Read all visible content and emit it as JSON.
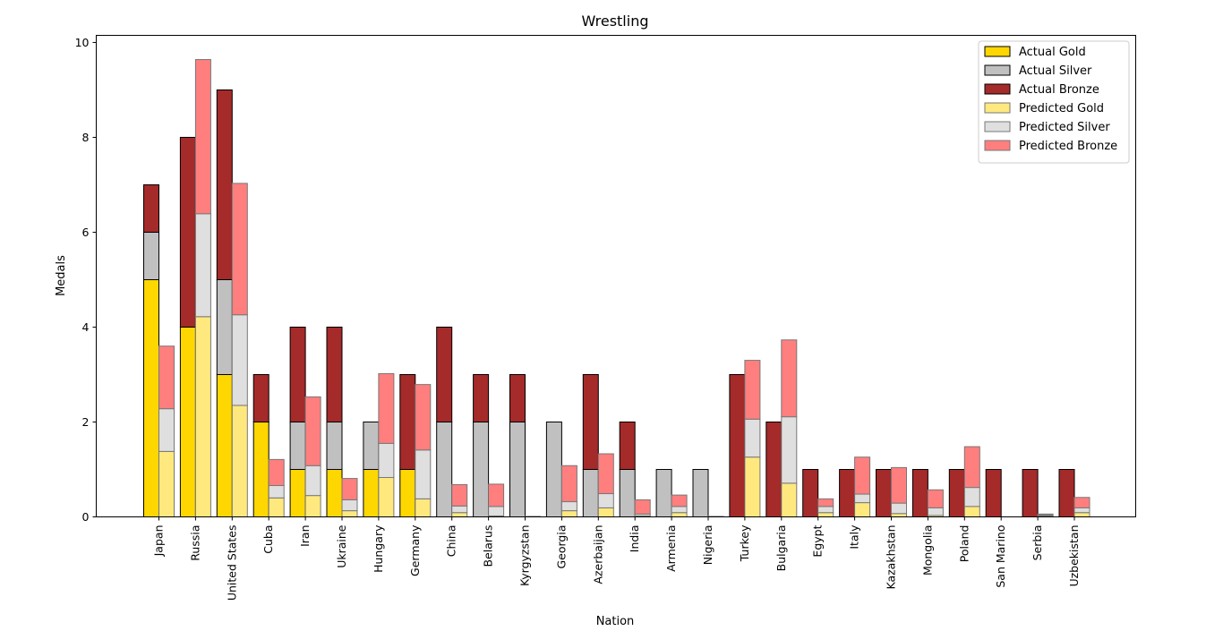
{
  "chart_data": {
    "type": "bar",
    "title": "Wrestling",
    "xlabel": "Nation",
    "ylabel": "Medals",
    "ylim": [
      0,
      10.15
    ],
    "yticks": [
      0,
      2,
      4,
      6,
      8,
      10
    ],
    "legend_position": "top-right",
    "categories": [
      "Japan",
      "Russia",
      "United States",
      "Cuba",
      "Iran",
      "Ukraine",
      "Hungary",
      "Germany",
      "China",
      "Belarus",
      "Kyrgyzstan",
      "Georgia",
      "Azerbaijan",
      "India",
      "Armenia",
      "Nigeria",
      "Turkey",
      "Bulgaria",
      "Egypt",
      "Italy",
      "Kazakhstan",
      "Mongolia",
      "Poland",
      "San Marino",
      "Serbia",
      "Uzbekistan"
    ],
    "series": [
      {
        "name": "Actual Gold",
        "group": "actual",
        "color": "#FFD700",
        "edge": "#000000",
        "values": [
          5,
          4,
          3,
          2,
          1,
          1,
          1,
          1,
          0,
          0,
          0,
          0,
          0,
          0,
          0,
          0,
          0,
          0,
          0,
          0,
          0,
          0,
          0,
          0,
          0,
          0
        ]
      },
      {
        "name": "Actual Silver",
        "group": "actual",
        "color": "#C0C0C0",
        "edge": "#000000",
        "values": [
          1,
          0,
          2,
          0,
          1,
          1,
          1,
          0,
          2,
          2,
          2,
          2,
          1,
          1,
          1,
          1,
          0,
          0,
          0,
          0,
          0,
          0,
          0,
          0,
          0,
          0
        ]
      },
      {
        "name": "Actual Bronze",
        "group": "actual",
        "color": "#A52A2A",
        "edge": "#000000",
        "values": [
          1,
          4,
          4,
          1,
          2,
          2,
          0,
          2,
          2,
          1,
          1,
          0,
          2,
          1,
          0,
          0,
          3,
          2,
          1,
          1,
          1,
          1,
          1,
          1,
          1,
          1
        ]
      },
      {
        "name": "Predicted Gold",
        "group": "predicted",
        "color": "#FFE97F",
        "edge": "#777777",
        "values": [
          1.38,
          4.22,
          2.35,
          0.4,
          0.45,
          0.13,
          0.83,
          0.38,
          0.09,
          0.02,
          0.0,
          0.13,
          0.19,
          0.02,
          0.09,
          0.0,
          1.26,
          0.71,
          0.09,
          0.3,
          0.07,
          0.03,
          0.22,
          0.0,
          0.02,
          0.09
        ]
      },
      {
        "name": "Predicted Silver",
        "group": "predicted",
        "color": "#DFDFDF",
        "edge": "#777777",
        "values": [
          0.9,
          2.17,
          1.91,
          0.26,
          0.63,
          0.23,
          0.72,
          1.03,
          0.14,
          0.2,
          0.0,
          0.19,
          0.3,
          0.04,
          0.13,
          0.0,
          0.8,
          1.4,
          0.13,
          0.18,
          0.22,
          0.16,
          0.4,
          0.0,
          0.02,
          0.1
        ]
      },
      {
        "name": "Predicted Bronze",
        "group": "predicted",
        "color": "#FF7F7F",
        "edge": "#777777",
        "values": [
          1.32,
          3.25,
          2.77,
          0.55,
          1.45,
          0.45,
          1.47,
          1.38,
          0.45,
          0.47,
          0.01,
          0.76,
          0.84,
          0.3,
          0.24,
          0.01,
          1.24,
          1.62,
          0.16,
          0.78,
          0.75,
          0.38,
          0.86,
          0.0,
          0.02,
          0.22
        ]
      }
    ]
  }
}
